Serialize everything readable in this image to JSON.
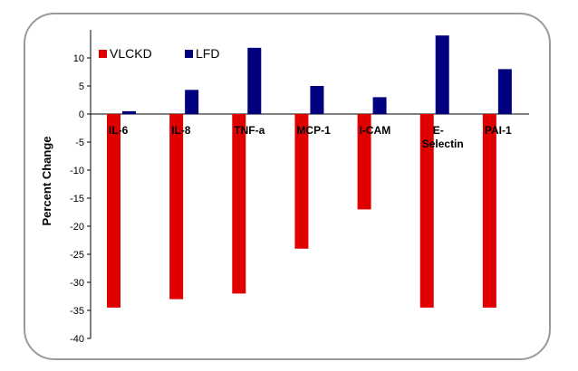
{
  "chart_data": {
    "type": "bar",
    "categories": [
      "IL-6",
      "IL-8",
      "TNF-a",
      "MCP-1",
      "I-CAM",
      "E-\nSelectin",
      "PAI-1"
    ],
    "series": [
      {
        "name": "VLCKD",
        "color": "#e00000",
        "values": [
          -34.5,
          -33,
          -32,
          -24,
          -17,
          -34.5,
          -34.5
        ]
      },
      {
        "name": "LFD",
        "color": "#00007f",
        "values": [
          0.5,
          4.3,
          11.8,
          5,
          3,
          14,
          8
        ]
      }
    ],
    "ylabel": "Percent Change",
    "ylim": [
      -40,
      15
    ],
    "yticks": [
      -40,
      -35,
      -30,
      -25,
      -20,
      -15,
      -10,
      -5,
      0,
      5,
      10
    ],
    "legend_position": "top-left",
    "grid": false
  }
}
